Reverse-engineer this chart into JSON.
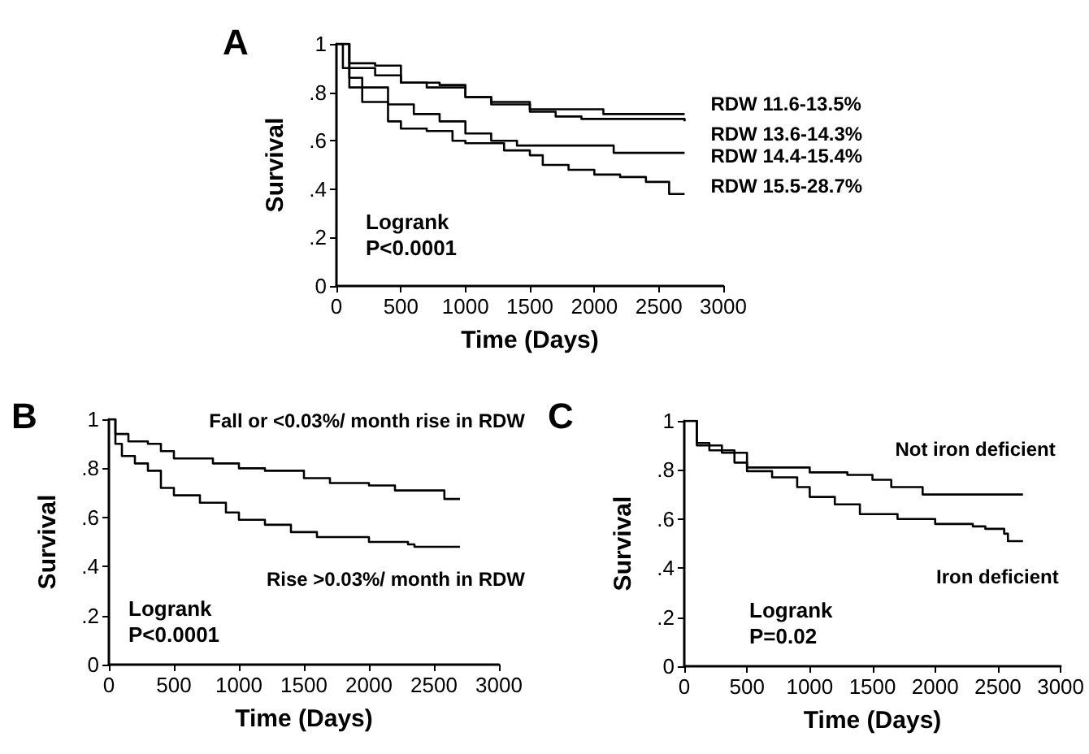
{
  "chart_data": [
    {
      "type": "step",
      "title": "A",
      "xlabel": "Time (Days)",
      "ylabel": "Survival",
      "annotations": [
        "Logrank",
        "P<0.0001"
      ],
      "legend": false,
      "grid": false,
      "xlim": [
        0,
        3000
      ],
      "xticks": [
        0,
        500,
        1000,
        1500,
        2000,
        2500,
        3000
      ],
      "ylim": [
        0,
        1
      ],
      "yticks": [
        {
          "value": 0,
          "label": "0"
        },
        {
          "value": 0.2,
          "label": ".2"
        },
        {
          "value": 0.4,
          "label": ".4"
        },
        {
          "value": 0.6,
          "label": ".6"
        },
        {
          "value": 0.8,
          "label": ".8"
        },
        {
          "value": 1,
          "label": "1"
        }
      ],
      "series": [
        {
          "name": "RDW 11.6-13.5%",
          "color": "#000000",
          "x": [
            0,
            100,
            300,
            500,
            800,
            1000,
            1200,
            1500,
            2070,
            2700
          ],
          "values": [
            1,
            0.92,
            0.91,
            0.84,
            0.83,
            0.78,
            0.75,
            0.73,
            0.71,
            0.71
          ]
        },
        {
          "name": "RDW 13.6-14.3%",
          "color": "#000000",
          "x": [
            0,
            100,
            300,
            500,
            700,
            1000,
            1200,
            1500,
            1700,
            1900,
            2700
          ],
          "values": [
            1,
            0.9,
            0.87,
            0.84,
            0.82,
            0.78,
            0.76,
            0.72,
            0.7,
            0.69,
            0.68
          ]
        },
        {
          "name": "RDW 14.4-15.4%",
          "color": "#000000",
          "x": [
            0,
            100,
            200,
            400,
            600,
            800,
            1000,
            1200,
            1400,
            2150,
            2700
          ],
          "values": [
            1,
            0.86,
            0.82,
            0.75,
            0.71,
            0.68,
            0.63,
            0.6,
            0.58,
            0.55,
            0.55
          ]
        },
        {
          "name": "RDW 15.5-28.7%",
          "color": "#000000",
          "x": [
            0,
            50,
            100,
            200,
            400,
            500,
            700,
            900,
            1000,
            1300,
            1500,
            1600,
            1800,
            2000,
            2200,
            2400,
            2580,
            2700
          ],
          "values": [
            1,
            0.9,
            0.82,
            0.76,
            0.68,
            0.65,
            0.64,
            0.6,
            0.59,
            0.56,
            0.54,
            0.5,
            0.48,
            0.46,
            0.45,
            0.43,
            0.38,
            0.38
          ]
        }
      ]
    },
    {
      "type": "step",
      "title": "B",
      "xlabel": "Time (Days)",
      "ylabel": "Survival",
      "annotations": [
        "Logrank",
        "P<0.0001"
      ],
      "legend": false,
      "grid": false,
      "xlim": [
        0,
        3000
      ],
      "xticks": [
        0,
        500,
        1000,
        1500,
        2000,
        2500,
        3000
      ],
      "ylim": [
        0,
        1
      ],
      "yticks": [
        {
          "value": 0,
          "label": "0"
        },
        {
          "value": 0.2,
          "label": ".2"
        },
        {
          "value": 0.4,
          "label": ".4"
        },
        {
          "value": 0.6,
          "label": ".6"
        },
        {
          "value": 0.8,
          "label": ".8"
        },
        {
          "value": 1,
          "label": "1"
        }
      ],
      "series": [
        {
          "name": "Fall or <0.03%/ month rise in RDW",
          "color": "#000000",
          "x": [
            0,
            50,
            150,
            300,
            400,
            500,
            700,
            800,
            1000,
            1200,
            1500,
            1700,
            2000,
            2200,
            2580,
            2700
          ],
          "values": [
            1,
            0.94,
            0.91,
            0.9,
            0.87,
            0.84,
            0.84,
            0.82,
            0.8,
            0.79,
            0.76,
            0.74,
            0.73,
            0.71,
            0.675,
            0.675
          ]
        },
        {
          "name": "Rise >0.03%/ month in RDW",
          "color": "#000000",
          "x": [
            0,
            50,
            100,
            200,
            300,
            400,
            500,
            700,
            900,
            1000,
            1200,
            1400,
            1600,
            2000,
            2300,
            2350,
            2700
          ],
          "values": [
            1,
            0.9,
            0.85,
            0.82,
            0.79,
            0.72,
            0.69,
            0.66,
            0.62,
            0.59,
            0.57,
            0.54,
            0.52,
            0.5,
            0.49,
            0.48,
            0.48
          ]
        }
      ]
    },
    {
      "type": "step",
      "title": "C",
      "xlabel": "Time (Days)",
      "ylabel": "Survival",
      "annotations": [
        "Logrank",
        "P=0.02"
      ],
      "legend": false,
      "grid": false,
      "xlim": [
        0,
        3000
      ],
      "xticks": [
        0,
        500,
        1000,
        1500,
        2000,
        2500,
        3000
      ],
      "ylim": [
        0,
        1
      ],
      "yticks": [
        {
          "value": 0,
          "label": "0"
        },
        {
          "value": 0.2,
          "label": ".2"
        },
        {
          "value": 0.4,
          "label": ".4"
        },
        {
          "value": 0.6,
          "label": ".6"
        },
        {
          "value": 0.8,
          "label": ".8"
        },
        {
          "value": 1,
          "label": "1"
        }
      ],
      "series": [
        {
          "name": "Not iron deficient",
          "color": "#000000",
          "x": [
            0,
            100,
            300,
            500,
            900,
            1000,
            1300,
            1500,
            1650,
            1900,
            2700
          ],
          "values": [
            1,
            0.9,
            0.87,
            0.81,
            0.81,
            0.79,
            0.78,
            0.76,
            0.73,
            0.7,
            0.7
          ]
        },
        {
          "name": "Iron deficient",
          "color": "#000000",
          "x": [
            0,
            100,
            200,
            400,
            500,
            700,
            900,
            1000,
            1200,
            1400,
            1700,
            2000,
            2300,
            2400,
            2550,
            2580,
            2700
          ],
          "values": [
            1,
            0.91,
            0.88,
            0.83,
            0.795,
            0.77,
            0.73,
            0.69,
            0.66,
            0.62,
            0.6,
            0.58,
            0.57,
            0.56,
            0.54,
            0.51,
            0.51
          ]
        }
      ]
    }
  ]
}
